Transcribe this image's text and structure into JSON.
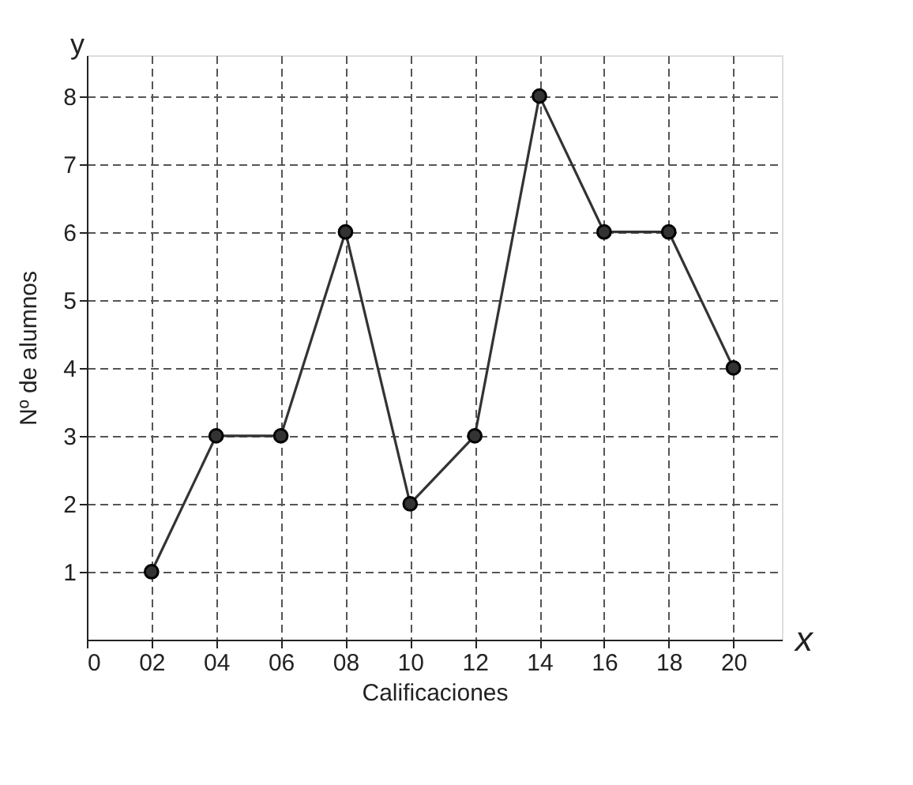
{
  "chart_data": {
    "type": "line",
    "xlabel": "Calificaciones",
    "ylabel": "Nº de alumnos",
    "annotations": [
      "y",
      "x"
    ],
    "x": [
      2,
      4,
      6,
      8,
      10,
      12,
      14,
      16,
      18,
      20
    ],
    "series": [
      {
        "color": "#333333",
        "values": [
          1,
          3,
          3,
          6,
          2,
          3,
          8,
          6,
          6,
          4
        ]
      }
    ],
    "xlim": [
      0,
      21.5
    ],
    "ylim": [
      0,
      8.6
    ],
    "xticks": [
      {
        "value": 0,
        "label": "0"
      },
      {
        "value": 2,
        "label": "02"
      },
      {
        "value": 4,
        "label": "04"
      },
      {
        "value": 6,
        "label": "06"
      },
      {
        "value": 8,
        "label": "08"
      },
      10,
      12,
      14,
      16,
      18,
      20
    ],
    "yticks": [
      1,
      2,
      3,
      4,
      5,
      6,
      7,
      8
    ],
    "grid": true,
    "marker": "circle",
    "line_style": "solid"
  }
}
